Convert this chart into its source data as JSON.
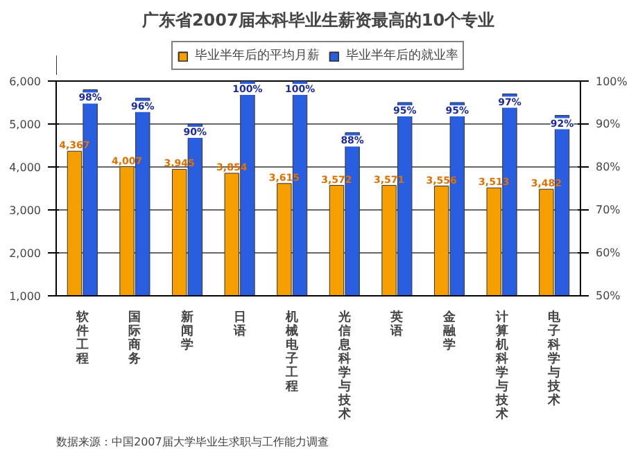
{
  "chart_data": {
    "type": "bar",
    "title": "广东省2007届本科毕业生薪资最高的10个专业",
    "categories": [
      "软件工程",
      "国际商务",
      "新闻学",
      "日语",
      "机械电子工程",
      "光信息科学与技术",
      "英语",
      "金融学",
      "计算机科学与技术",
      "电子科学与技术"
    ],
    "series": [
      {
        "name": "毕业半年后的平均月薪",
        "color": "#f5a000",
        "values": [
          4367,
          4007,
          3945,
          3854,
          3615,
          3572,
          3571,
          3556,
          3513,
          3482
        ],
        "value_labels": [
          "4,367",
          "4,007",
          "3,945",
          "3,854",
          "3,615",
          "3,572",
          "3,571",
          "3,556",
          "3,513",
          "3,482"
        ]
      },
      {
        "name": "毕业半年后的就业率",
        "color": "#2a5ee0",
        "axis": "y2",
        "values": [
          98,
          96,
          90,
          100,
          100,
          88,
          95,
          95,
          97,
          92
        ],
        "value_labels": [
          "98%",
          "96%",
          "90%",
          "100%",
          "100%",
          "88%",
          "95%",
          "95%",
          "97%",
          "92%"
        ]
      }
    ],
    "ylim": [
      1000,
      6000
    ],
    "yticks": [
      {
        "value": 1000,
        "label": "1,000"
      },
      {
        "value": 2000,
        "label": "2,000"
      },
      {
        "value": 3000,
        "label": "3,000"
      },
      {
        "value": 4000,
        "label": "4,000"
      },
      {
        "value": 5000,
        "label": "5,000"
      },
      {
        "value": 6000,
        "label": "6,000"
      }
    ],
    "y2lim": [
      50,
      100
    ],
    "y2ticks": [
      {
        "value": 50,
        "label": "50%"
      },
      {
        "value": 60,
        "label": "60%"
      },
      {
        "value": 70,
        "label": "70%"
      },
      {
        "value": 80,
        "label": "80%"
      },
      {
        "value": 90,
        "label": "90%"
      },
      {
        "value": 100,
        "label": "100%"
      }
    ],
    "grid": "y",
    "legend": "top",
    "annotations": [
      "数据来源：中国2007届大学毕业生求职与工作能力调查"
    ]
  }
}
